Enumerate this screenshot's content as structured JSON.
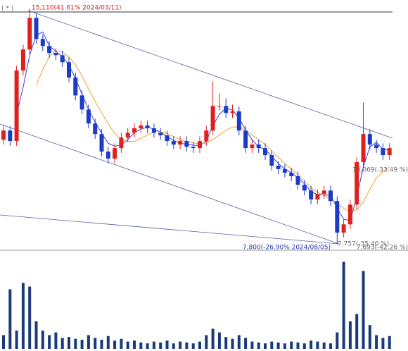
{
  "chart_data": {
    "type": "candlestick",
    "open": [
      11000,
      11290,
      10960,
      13170,
      13830,
      14820,
      14160,
      13940,
      13720,
      13650,
      13430,
      12950,
      12390,
      11950,
      11510,
      11180,
      10630,
      10410,
      10740,
      11070,
      11220,
      11360,
      11450,
      11360,
      11220,
      11140,
      10960,
      10850,
      10960,
      10780,
      10740,
      10960,
      11290,
      12060,
      12060,
      11840,
      11890,
      11290,
      10740,
      10850,
      10740,
      10520,
      10190,
      10080,
      9970,
      9860,
      9590,
      9410,
      9130,
      9300,
      9410,
      9080,
      8090,
      8350,
      8970,
      10300,
      11180,
      10850,
      10740,
      10520
    ],
    "high": [
      11440,
      11440,
      13320,
      13980,
      15110,
      14970,
      14310,
      14090,
      13870,
      13800,
      13580,
      13100,
      12540,
      12100,
      11660,
      11330,
      10780,
      10890,
      11220,
      11370,
      11510,
      11600,
      11600,
      11510,
      11370,
      11290,
      11110,
      11110,
      11110,
      10930,
      11110,
      11440,
      12830,
      12450,
      12300,
      12100,
      12040,
      11440,
      11000,
      11000,
      10890,
      10670,
      10340,
      10230,
      10120,
      10010,
      9740,
      9560,
      9450,
      9560,
      9560,
      9230,
      8500,
      9120,
      10450,
      12170,
      11330,
      11000,
      10890,
      10890
    ],
    "low": [
      10850,
      10810,
      10810,
      13020,
      13680,
      14010,
      13790,
      13570,
      13500,
      13280,
      12800,
      12240,
      11800,
      11360,
      11030,
      10480,
      10260,
      10260,
      10590,
      10920,
      11070,
      11210,
      11210,
      11070,
      10990,
      10810,
      10700,
      10700,
      10630,
      10590,
      10590,
      10810,
      11140,
      11910,
      11690,
      11690,
      11140,
      10590,
      10590,
      10590,
      10370,
      10040,
      9930,
      9820,
      9710,
      9440,
      9260,
      8980,
      8980,
      9150,
      8930,
      7757,
      7940,
      8200,
      8820,
      10150,
      10700,
      10590,
      10370,
      10370
    ],
    "close": [
      11290,
      10960,
      13170,
      13830,
      14820,
      14160,
      13940,
      13720,
      13650,
      13430,
      12950,
      12390,
      11950,
      11510,
      11180,
      10630,
      10410,
      10740,
      11070,
      11220,
      11360,
      11450,
      11360,
      11220,
      11140,
      10960,
      10850,
      10960,
      10780,
      10740,
      10960,
      11290,
      12060,
      12060,
      11840,
      11890,
      11290,
      10740,
      10850,
      10740,
      10520,
      10190,
      10080,
      9970,
      9860,
      9590,
      9410,
      9130,
      9300,
      9410,
      9080,
      8090,
      8350,
      8970,
      10300,
      11180,
      10850,
      10740,
      10520,
      10740
    ],
    "volume": [
      150,
      650,
      200,
      720,
      680,
      300,
      200,
      150,
      180,
      120,
      130,
      110,
      100,
      150,
      120,
      100,
      140,
      90,
      110,
      80,
      90,
      70,
      60,
      80,
      70,
      90,
      60,
      80,
      70,
      60,
      80,
      150,
      220,
      180,
      130,
      110,
      150,
      120,
      80,
      70,
      60,
      80,
      70,
      60,
      80,
      70,
      60,
      90,
      80,
      70,
      60,
      180,
      950,
      300,
      380,
      850,
      260,
      150,
      120,
      140
    ],
    "series": [
      {
        "color": "#3a3ae0",
        "values": [
          null,
          null,
          11800,
          12650,
          13650,
          14270,
          14380,
          13940,
          13770,
          13600,
          13340,
          12920,
          12430,
          11950,
          11550,
          11210,
          10890,
          10800,
          10840,
          11010,
          11220,
          11340,
          11390,
          11340,
          11240,
          11100,
          10980,
          10890,
          10860,
          10830,
          10820,
          10960,
          11440,
          11800,
          11990,
          11930,
          11680,
          11310,
          11000,
          10780,
          10700,
          10480,
          10260,
          10080,
          9970,
          9810,
          9620,
          9380,
          9280,
          9270,
          9260,
          8860,
          8510,
          8470,
          9210,
          10150,
          10780,
          10920,
          10700,
          10670
        ]
      },
      {
        "color": "#f0a030",
        "values": [
          null,
          null,
          null,
          null,
          null,
          12700,
          13200,
          13600,
          13800,
          13750,
          13600,
          13350,
          13000,
          12600,
          12200,
          11850,
          11500,
          11200,
          11000,
          10950,
          10950,
          11050,
          11150,
          11250,
          11250,
          11200,
          11100,
          11000,
          10950,
          10900,
          10880,
          10900,
          11000,
          11150,
          11300,
          11400,
          11400,
          11300,
          11150,
          11000,
          10850,
          10650,
          10450,
          10250,
          10080,
          9900,
          9700,
          9500,
          9350,
          9250,
          9150,
          9000,
          8850,
          8750,
          8800,
          9050,
          9450,
          9800,
          10000,
          10150
        ]
      }
    ],
    "up_color": "#e0201c",
    "down_color": "#1c3cc8",
    "volume_color": "#1a3a7a",
    "ylim": [
      7540,
      15380
    ],
    "volume_lim": [
      0,
      1000
    ],
    "annotations": [
      "( * )",
      "15,110(41.61% 2024/03/11)",
      "10,069(-33.49 %)",
      "7,757(-35.40 %)",
      "7,800(-26.90% 2024/08/05)",
      "7,693(-42.26 %)"
    ]
  }
}
